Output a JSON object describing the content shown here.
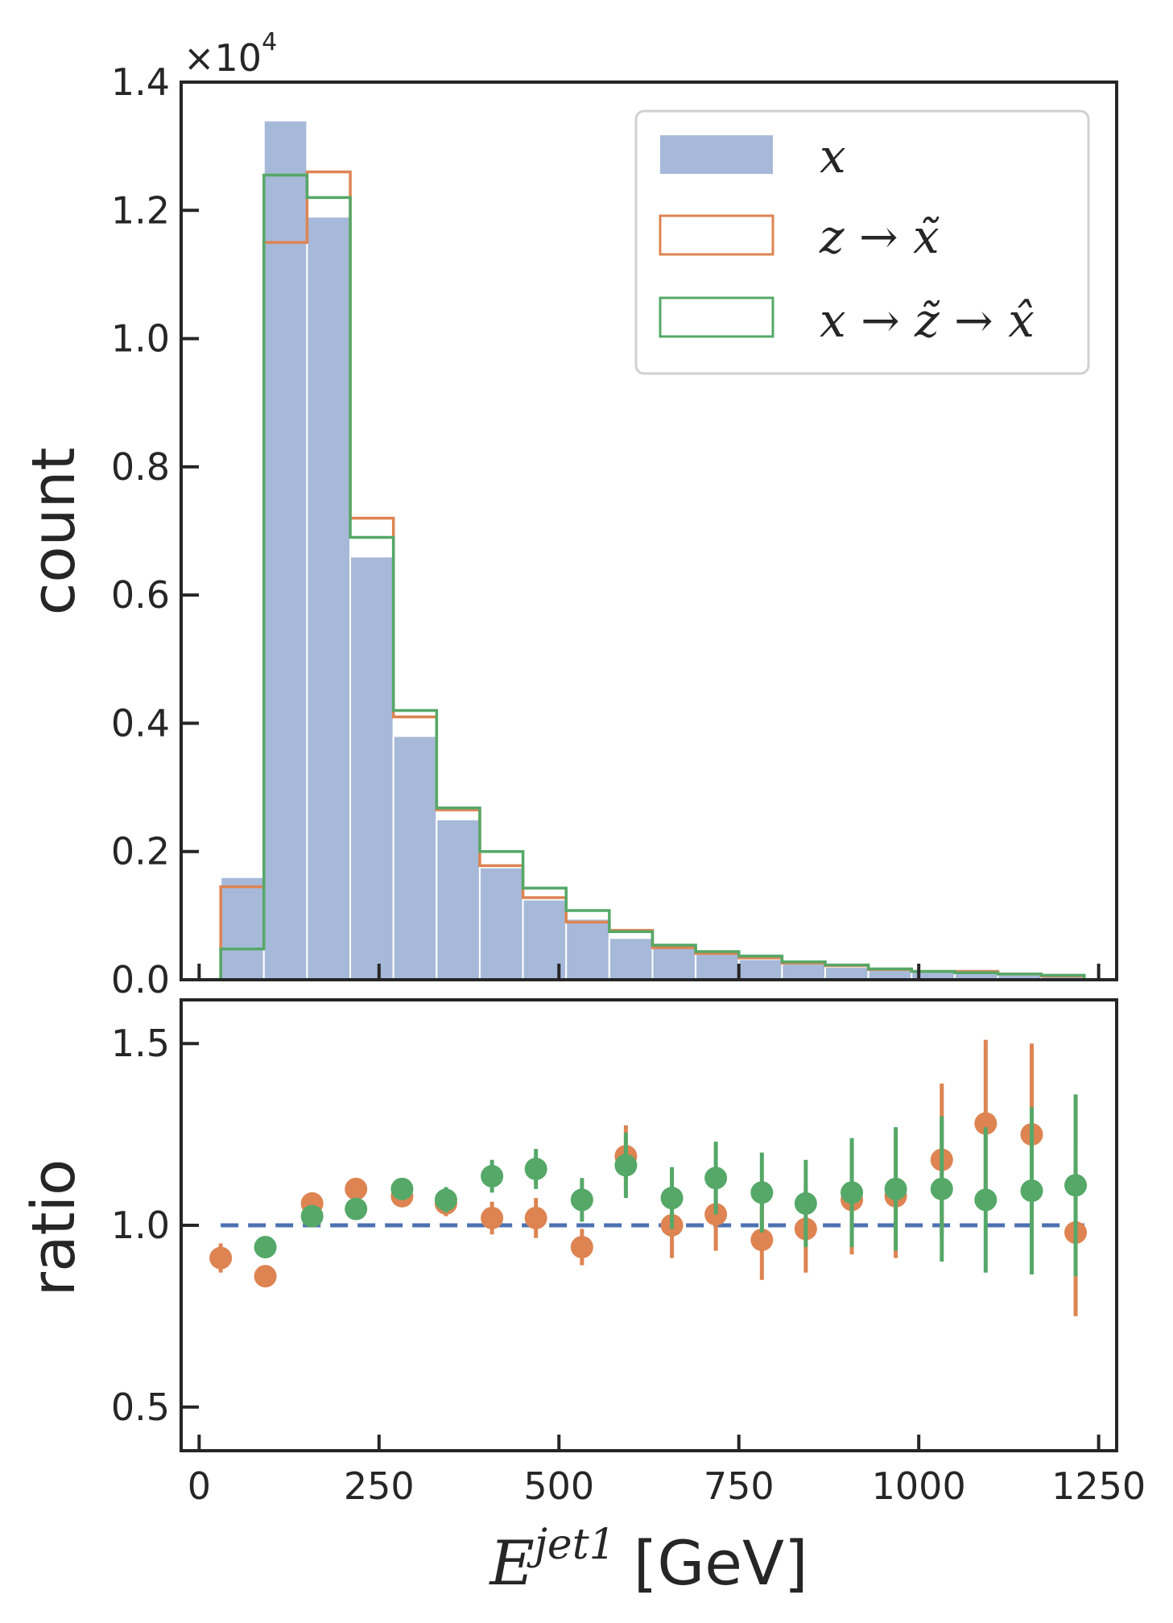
{
  "chart_data": [
    {
      "type": "bar",
      "subtype": "histogram",
      "ylabel": "count",
      "y_multiplier": "×10",
      "y_multiplier_exp": "4",
      "ylim": [
        0,
        1.4
      ],
      "yticks": [
        "0.0",
        "0.2",
        "0.4",
        "0.6",
        "0.8",
        "1.0",
        "1.2",
        "1.4"
      ],
      "bin_edges": [
        30,
        90,
        150,
        210,
        270,
        330,
        390,
        450,
        510,
        570,
        630,
        690,
        750,
        810,
        870,
        930,
        990,
        1050,
        1110,
        1170,
        1230
      ],
      "series": [
        {
          "name": "x",
          "style": "filled",
          "color": "#a7b9d9",
          "values": [
            0.16,
            1.34,
            1.19,
            0.66,
            0.38,
            0.25,
            0.175,
            0.125,
            0.095,
            0.065,
            0.05,
            0.04,
            0.032,
            0.025,
            0.02,
            0.015,
            0.012,
            0.01,
            0.008,
            0.006
          ]
        },
        {
          "name": "z → x̃",
          "style": "step",
          "color": "#dd8452",
          "values": [
            0.145,
            1.15,
            1.26,
            0.72,
            0.41,
            0.265,
            0.178,
            0.128,
            0.09,
            0.077,
            0.05,
            0.041,
            0.034,
            0.026,
            0.022,
            0.016,
            0.013,
            0.013,
            0.009,
            0.006
          ]
        },
        {
          "name": "x → z̃ → x̂",
          "style": "step",
          "color": "#55a868",
          "values": [
            0.048,
            1.255,
            1.22,
            0.69,
            0.42,
            0.268,
            0.2,
            0.143,
            0.108,
            0.075,
            0.054,
            0.044,
            0.037,
            0.028,
            0.023,
            0.017,
            0.013,
            0.011,
            0.009,
            0.007
          ]
        }
      ],
      "legend": {
        "position": "upper-right",
        "entries": [
          "x",
          "z → x̃",
          "x → z̃ → x̂"
        ]
      }
    },
    {
      "type": "scatter",
      "ylabel": "ratio",
      "xlabel": "E",
      "xlabel_sup": "jet1",
      "xlabel_unit": "[GeV]",
      "xlim": [
        -25,
        1275
      ],
      "ylim": [
        0.38,
        1.62
      ],
      "xticks": [
        "0",
        "250",
        "500",
        "750",
        "1000",
        "1250"
      ],
      "yticks": [
        "0.5",
        "1.0",
        "1.5"
      ],
      "reference_line": {
        "y": 1.0,
        "style": "dashed",
        "color": "#4c72b0",
        "x_from": 30,
        "x_to": 1230
      },
      "series": [
        {
          "name": "z → x̃",
          "color": "#dd8452",
          "x": [
            30,
            92,
            157,
            218,
            282,
            343,
            407,
            468,
            532,
            593,
            657,
            718,
            782,
            843,
            907,
            968,
            1032,
            1093,
            1157,
            1218
          ],
          "y": [
            0.91,
            0.86,
            1.06,
            1.1,
            1.08,
            1.06,
            1.02,
            1.02,
            0.94,
            1.19,
            1.0,
            1.03,
            0.96,
            0.99,
            1.07,
            1.08,
            1.18,
            1.28,
            1.25,
            0.98
          ],
          "yerr": [
            0.04,
            0.02,
            0.02,
            0.025,
            0.03,
            0.035,
            0.045,
            0.055,
            0.05,
            0.085,
            0.09,
            0.1,
            0.11,
            0.12,
            0.15,
            0.17,
            0.21,
            0.23,
            0.25,
            0.23
          ]
        },
        {
          "name": "x → z̃ → x̂",
          "color": "#55a868",
          "x": [
            92,
            157,
            218,
            282,
            343,
            407,
            468,
            532,
            593,
            657,
            718,
            782,
            843,
            907,
            968,
            1032,
            1093,
            1157,
            1218
          ],
          "y": [
            0.94,
            1.025,
            1.045,
            1.1,
            1.07,
            1.135,
            1.155,
            1.07,
            1.165,
            1.075,
            1.13,
            1.09,
            1.06,
            1.09,
            1.1,
            1.1,
            1.07,
            1.095,
            1.11
          ],
          "yerr": [
            0.015,
            0.015,
            0.02,
            0.025,
            0.035,
            0.045,
            0.055,
            0.06,
            0.09,
            0.085,
            0.1,
            0.11,
            0.12,
            0.15,
            0.17,
            0.2,
            0.2,
            0.23,
            0.25
          ]
        }
      ]
    }
  ]
}
